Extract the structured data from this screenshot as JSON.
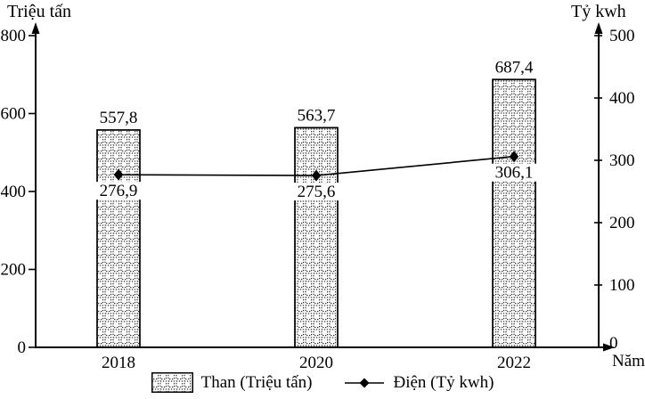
{
  "chart_data": {
    "type": "combo-bar-line",
    "categories": [
      "2018",
      "2020",
      "2022"
    ],
    "series": [
      {
        "name": "Than (Triệu tấn)",
        "type": "bar",
        "axis": "left",
        "values": [
          557.8,
          563.7,
          687.4
        ],
        "value_labels": [
          "557,8",
          "563,7",
          "687,4"
        ],
        "fill_pattern": "dotted-grid",
        "stroke": "#000000"
      },
      {
        "name": "Điện (Tỷ kwh)",
        "type": "line",
        "axis": "right",
        "marker": "diamond",
        "values": [
          276.9,
          275.6,
          306.1
        ],
        "value_labels": [
          "276,9",
          "275,6",
          "306,1"
        ],
        "stroke": "#000000"
      }
    ],
    "axes": {
      "left": {
        "title": "Triệu tấn",
        "min": 0,
        "max": 800,
        "ticks": [
          0,
          200,
          400,
          600,
          800
        ]
      },
      "right": {
        "title": "Tỷ kwh",
        "min": 0,
        "max": 500,
        "ticks": [
          0,
          100,
          200,
          300,
          400,
          500
        ]
      },
      "x": {
        "title": "Năm"
      }
    },
    "legend": {
      "position": "bottom",
      "items": [
        {
          "label": "Than (Triệu tấn)",
          "swatch": "hatched-bar"
        },
        {
          "label": "Điện (Tỷ kwh)",
          "swatch": "diamond-line"
        }
      ]
    },
    "grid": false,
    "colors": {
      "foreground": "#000000",
      "background": "#ffffff"
    }
  }
}
